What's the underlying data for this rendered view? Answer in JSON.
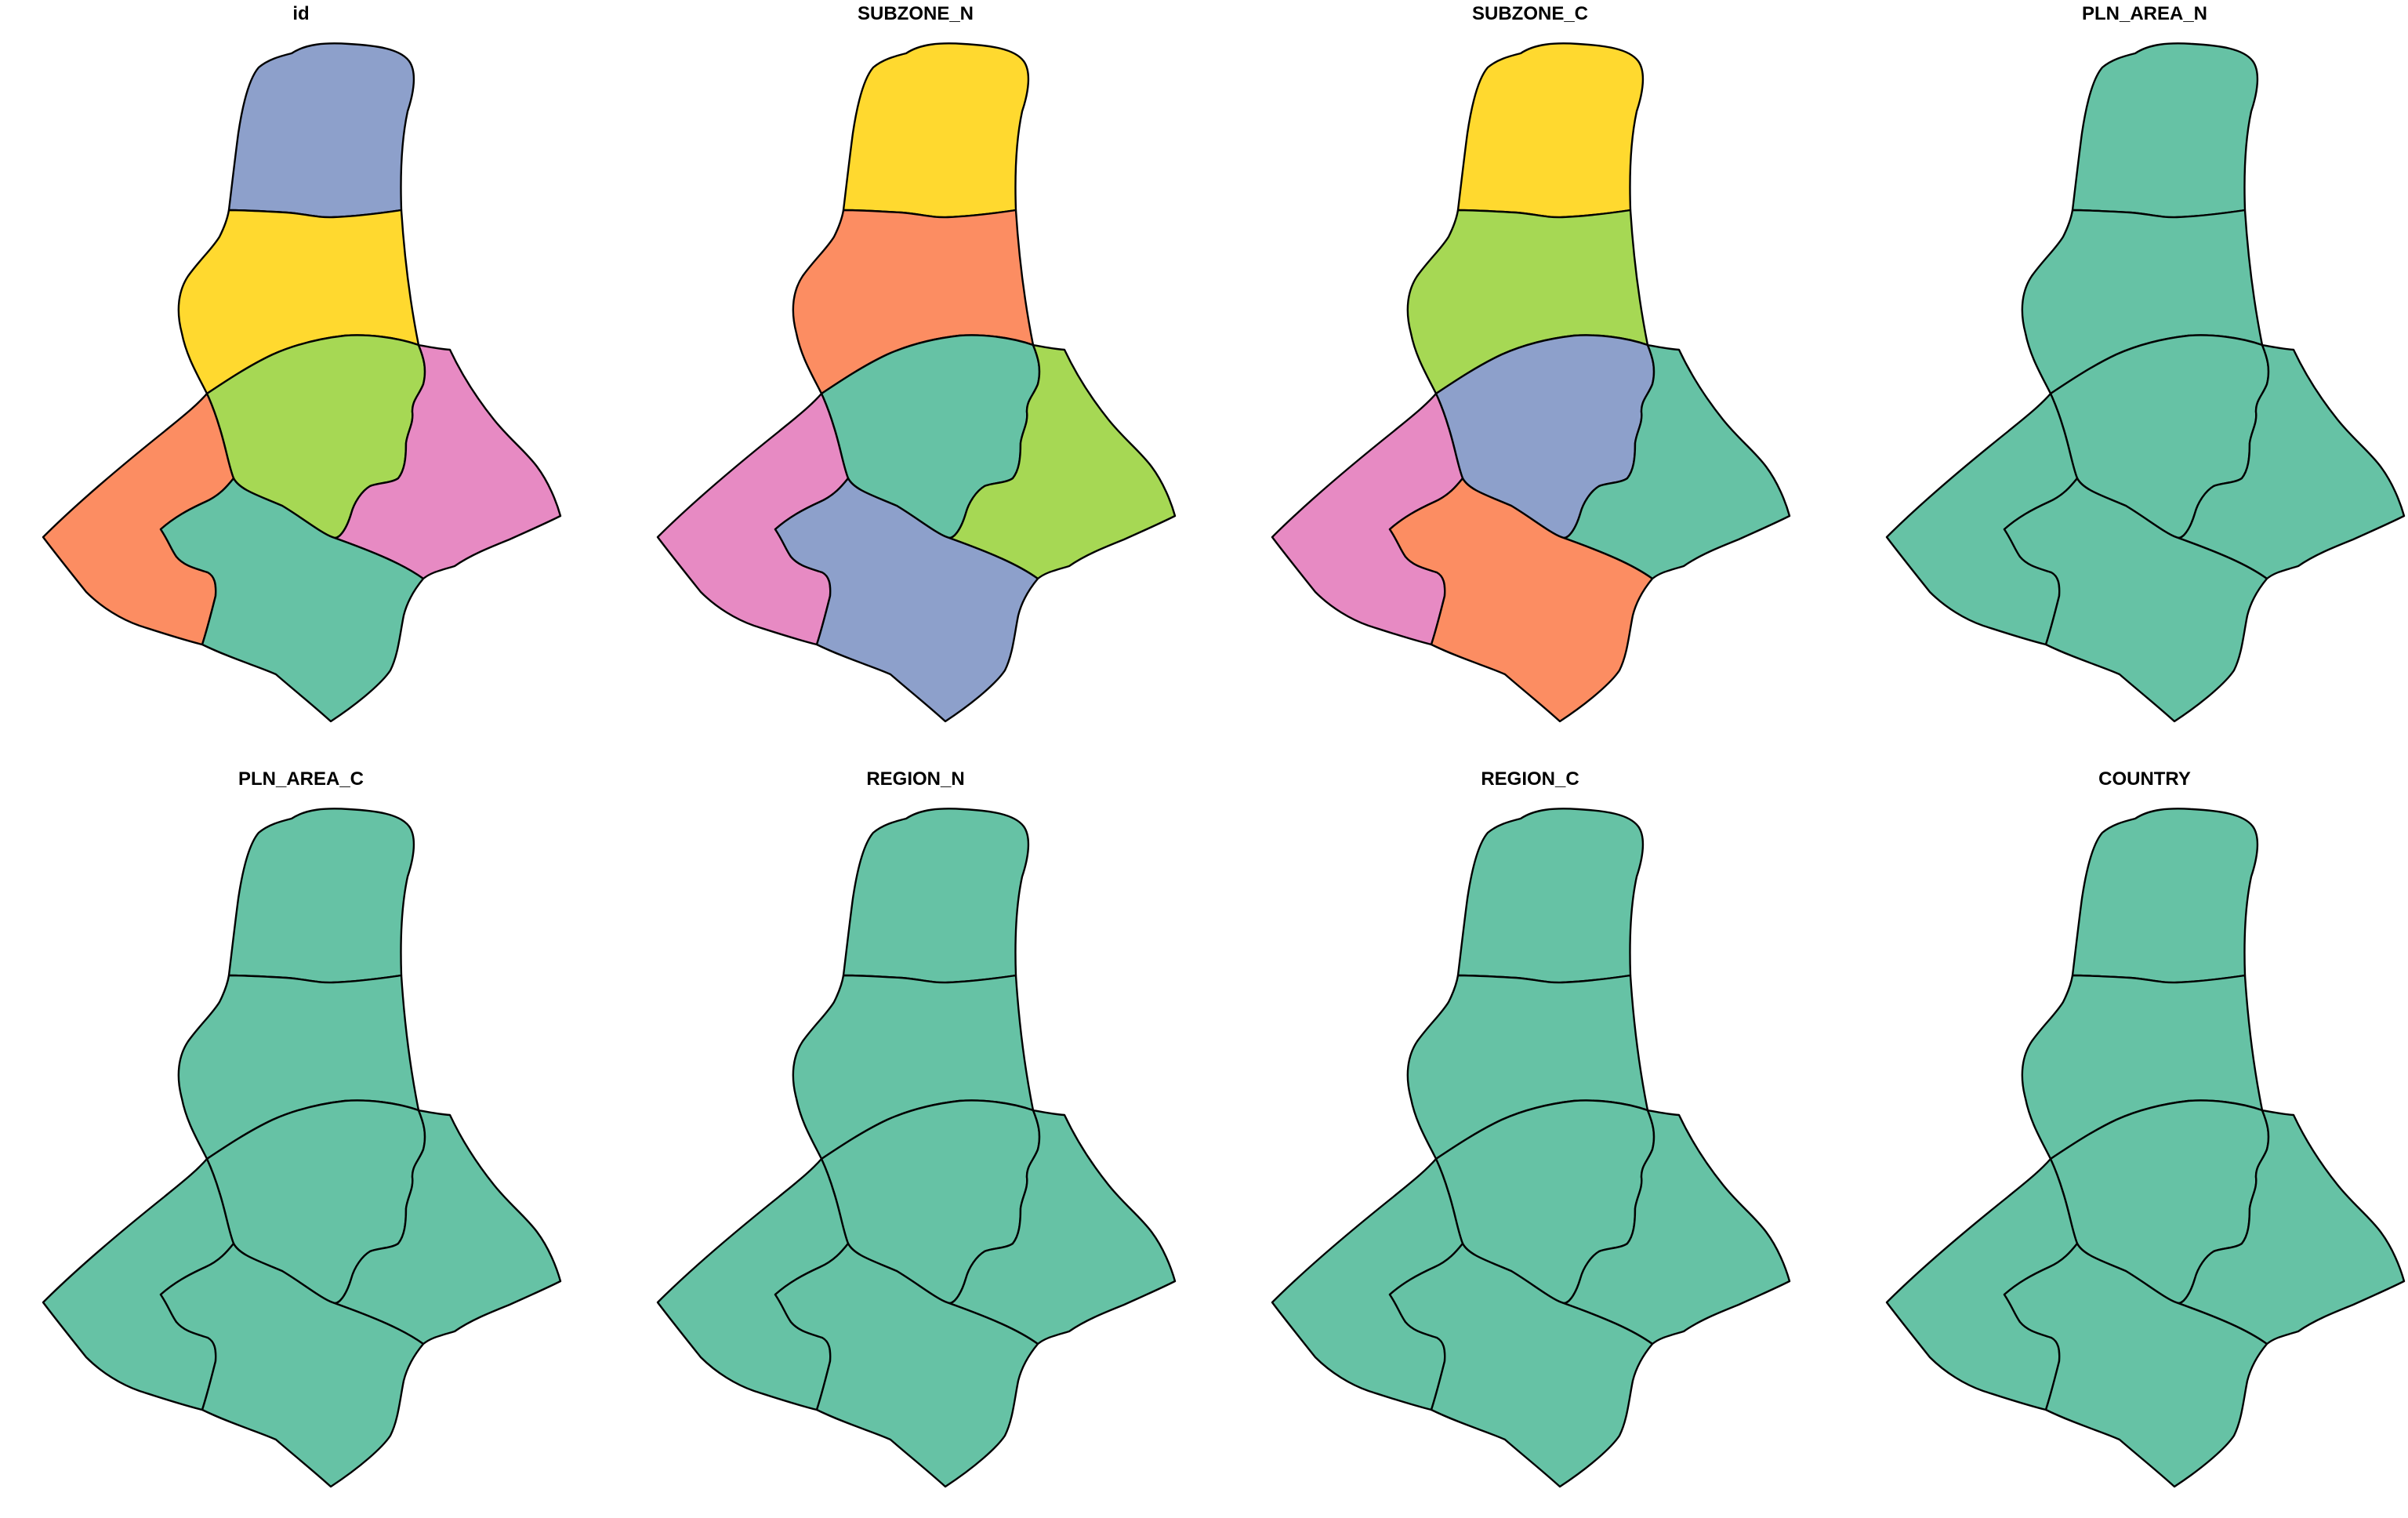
{
  "palette": [
    "#66C2A5",
    "#FC8D62",
    "#8DA0CB",
    "#E78AC3",
    "#A6D854",
    "#FFD92F"
  ],
  "polygons": [
    "a",
    "b",
    "c",
    "d",
    "e",
    "f"
  ],
  "panels": [
    {
      "title": "id",
      "fill": {
        "a": "#8DA0CB",
        "b": "#FFD92F",
        "c": "#A6D854",
        "d": "#E78AC3",
        "e": "#FC8D62",
        "f": "#66C2A5"
      }
    },
    {
      "title": "SUBZONE_N",
      "fill": {
        "a": "#FFD92F",
        "b": "#FC8D62",
        "c": "#66C2A5",
        "d": "#A6D854",
        "e": "#E78AC3",
        "f": "#8DA0CB"
      }
    },
    {
      "title": "SUBZONE_C",
      "fill": {
        "a": "#FFD92F",
        "b": "#A6D854",
        "c": "#8DA0CB",
        "d": "#66C2A5",
        "e": "#E78AC3",
        "f": "#FC8D62"
      }
    },
    {
      "title": "PLN_AREA_N",
      "fill": {
        "a": "#66C2A5",
        "b": "#66C2A5",
        "c": "#66C2A5",
        "d": "#66C2A5",
        "e": "#66C2A5",
        "f": "#66C2A5"
      }
    },
    {
      "title": "PLN_AREA_C",
      "fill": {
        "a": "#66C2A5",
        "b": "#66C2A5",
        "c": "#66C2A5",
        "d": "#66C2A5",
        "e": "#66C2A5",
        "f": "#66C2A5"
      }
    },
    {
      "title": "REGION_N",
      "fill": {
        "a": "#66C2A5",
        "b": "#66C2A5",
        "c": "#66C2A5",
        "d": "#66C2A5",
        "e": "#66C2A5",
        "f": "#66C2A5"
      }
    },
    {
      "title": "REGION_C",
      "fill": {
        "a": "#66C2A5",
        "b": "#66C2A5",
        "c": "#66C2A5",
        "d": "#66C2A5",
        "e": "#66C2A5",
        "f": "#66C2A5"
      }
    },
    {
      "title": "COUNTRY",
      "fill": {
        "a": "#66C2A5",
        "b": "#66C2A5",
        "c": "#66C2A5",
        "d": "#66C2A5",
        "e": "#66C2A5",
        "f": "#66C2A5"
      }
    }
  ]
}
